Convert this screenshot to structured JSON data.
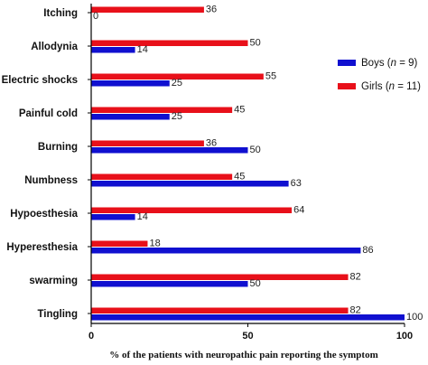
{
  "chart_data": {
    "type": "bar",
    "orientation": "horizontal",
    "categories": [
      "Itching",
      "Allodynia",
      "Electric shocks",
      "Painful cold",
      "Burning",
      "Numbness",
      "Hypoesthesia",
      "Hyperesthesia",
      "swarming",
      "Tingling"
    ],
    "series": [
      {
        "name": "Girls",
        "n_label": "n = 11",
        "color": "#e8101a",
        "values": [
          36,
          50,
          55,
          45,
          36,
          45,
          64,
          18,
          82,
          82
        ]
      },
      {
        "name": "Boys",
        "n_label": "n = 9",
        "color": "#1010d0",
        "values": [
          0,
          14,
          25,
          25,
          50,
          63,
          14,
          86,
          50,
          100
        ]
      }
    ],
    "xlabel": "% of the patients with neuropathic pain reporting the symptom",
    "ylabel": "",
    "xlim": [
      0,
      100
    ],
    "xticks": [
      0,
      50,
      100
    ],
    "grid": false,
    "legend_position": "right",
    "legend_order": [
      "Boys",
      "Girls"
    ]
  }
}
